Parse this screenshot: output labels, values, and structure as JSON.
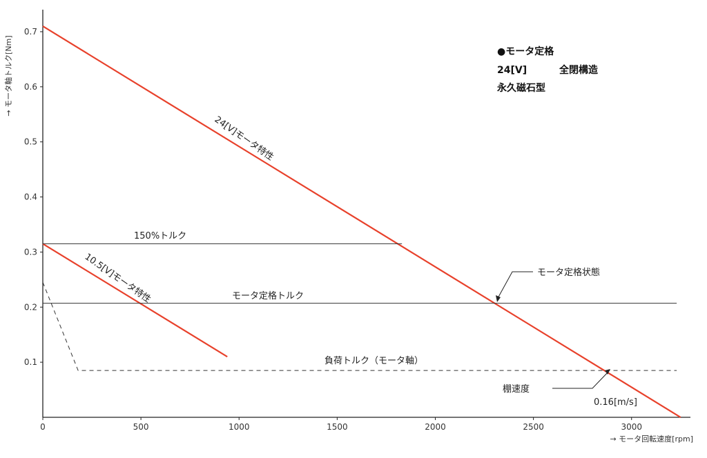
{
  "chart_data": {
    "type": "line",
    "xlabel": "→ モータ回転速度[rpm]",
    "ylabel": "→ モータ軸トルク[Nm]",
    "xlim": [
      0,
      3300
    ],
    "ylim": [
      0,
      0.74
    ],
    "x_ticks": [
      0,
      500,
      1000,
      1500,
      2000,
      2500,
      3000
    ],
    "y_ticks": [
      0.1,
      0.2,
      0.3,
      0.4,
      0.5,
      0.6,
      0.7
    ],
    "y_tick_labels": [
      "0.1",
      "0.2",
      "0.3",
      "0.4",
      "0.5",
      "0.6",
      "0.7"
    ],
    "series": [
      {
        "name": "24[V]モータ特性",
        "color": "#e8412b",
        "style": "solid",
        "x": [
          0,
          3250
        ],
        "y": [
          0.71,
          0
        ]
      },
      {
        "name": "10.5[V]モータ特性",
        "color": "#e8412b",
        "style": "solid",
        "x": [
          0,
          940
        ],
        "y": [
          0.315,
          0.11
        ]
      },
      {
        "name": "150%トルク",
        "color": "#333333",
        "style": "solid",
        "x": [
          0,
          1830
        ],
        "y": [
          0.315,
          0.315
        ]
      },
      {
        "name": "モータ定格トルク",
        "color": "#333333",
        "style": "solid",
        "x": [
          0,
          3230
        ],
        "y": [
          0.207,
          0.207
        ]
      },
      {
        "name": "負荷トルク（モータ軸）",
        "color": "#333333",
        "style": "dashed",
        "x": [
          0,
          180,
          3230
        ],
        "y": [
          0.245,
          0.085,
          0.085
        ]
      }
    ],
    "annotations": {
      "rated_state": "モータ定格状態",
      "shelf_speed": "棚速度",
      "speed_value": "0.16[m/s]"
    },
    "spec_box": {
      "title": "●モータ定格",
      "line1_left": "24[V]",
      "line1_right": "全閉構造",
      "line2": "永久磁石型"
    },
    "grid": false
  }
}
